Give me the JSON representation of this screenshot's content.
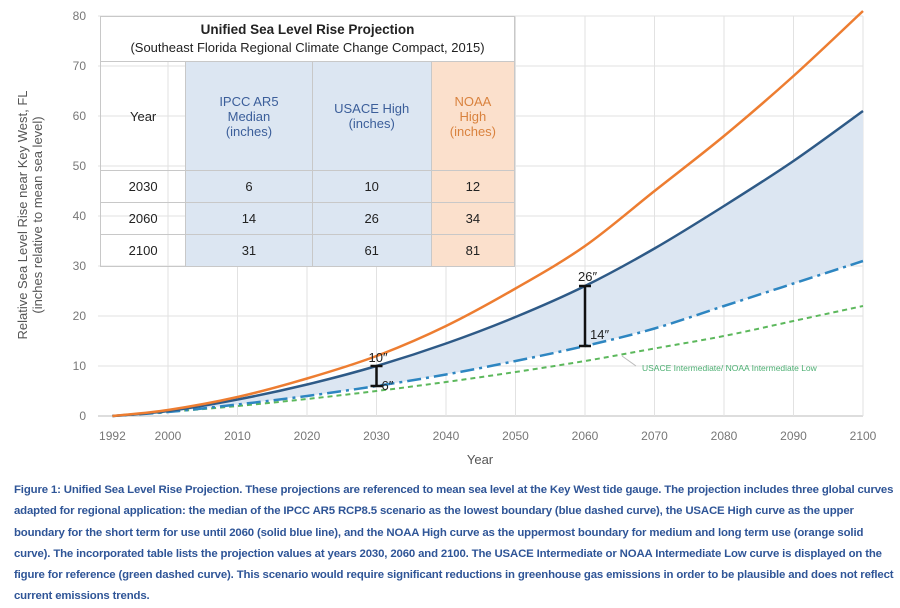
{
  "chart_data": {
    "type": "line",
    "xlabel": "Year",
    "ylabel": "Relative Sea Level Rise near Key West, FL",
    "ylabel2": "(inches relative to mean sea level)",
    "xlim": [
      1992,
      2100
    ],
    "ylim": [
      0,
      80
    ],
    "xticks": [
      1992,
      2000,
      2010,
      2020,
      2030,
      2040,
      2050,
      2060,
      2070,
      2080,
      2090,
      2100
    ],
    "yticks": [
      0,
      10,
      20,
      30,
      40,
      50,
      60,
      70,
      80
    ],
    "grid": true,
    "x": [
      1992,
      2000,
      2010,
      2020,
      2030,
      2040,
      2050,
      2060,
      2070,
      2080,
      2090,
      2100
    ],
    "series": [
      {
        "name": "NOAA High",
        "color": "#ed7d31",
        "style": "solid",
        "values": [
          0,
          1.2,
          3.8,
          7.5,
          12,
          18,
          25.5,
          34,
          45,
          56,
          68,
          81
        ]
      },
      {
        "name": "USACE High",
        "color": "#2e5a87",
        "style": "solid",
        "values": [
          0,
          1,
          3.3,
          6.3,
          10,
          14.5,
          19.8,
          26,
          33.5,
          42,
          51,
          61
        ]
      },
      {
        "name": "IPCC AR5 Median",
        "color": "#2e86c1",
        "style": "dash-dot",
        "values": [
          0,
          0.8,
          2.3,
          4,
          6,
          8.3,
          11,
          14,
          17.5,
          22,
          26.5,
          31
        ]
      },
      {
        "name": "USACE Intermediate/ NOAA Intermediate Low",
        "color": "#5cb85c",
        "style": "dashed",
        "values": [
          0,
          0.8,
          2,
          3.4,
          5,
          6.8,
          8.8,
          11,
          13.5,
          16,
          19,
          22
        ]
      }
    ],
    "fill_between": [
      "IPCC AR5 Median",
      "USACE High"
    ],
    "fill_color": "#dce6f2",
    "annotations": [
      {
        "text": "10″",
        "x": 2030,
        "y": 10
      },
      {
        "text": "6″",
        "x": 2030,
        "y": 6
      },
      {
        "text": "26″",
        "x": 2060,
        "y": 26
      },
      {
        "text": "14″",
        "x": 2060,
        "y": 14
      },
      {
        "text": "USACE Intermediate/ NOAA Intermediate Low",
        "x": 2065,
        "y": 10
      }
    ]
  },
  "table": {
    "title": "Unified Sea Level Rise Projection",
    "subtitle": "(Southeast Florida Regional Climate Change Compact, 2015)",
    "headers": [
      "Year",
      "IPCC AR5 Median (inches)",
      "USACE High (inches)",
      "NOAA High (inches)"
    ],
    "rows": [
      [
        "2030",
        "6",
        "10",
        "12"
      ],
      [
        "2060",
        "14",
        "26",
        "34"
      ],
      [
        "2100",
        "31",
        "61",
        "81"
      ]
    ]
  },
  "caption": "Figure 1: Unified Sea Level Rise Projection. These projections are referenced to mean sea level at the Key West tide gauge. The projection includes three global curves adapted for regional application: the median of the IPCC AR5 RCP8.5 scenario as the lowest boundary (blue dashed curve), the USACE High curve as the upper boundary for the short term for use until 2060 (solid blue line), and the NOAA High curve as the uppermost boundary for medium and long term use (orange solid curve). The incorporated table lists the projection values at years 2030, 2060 and 2100. The USACE Intermediate or NOAA Intermediate Low curve is displayed on the figure for reference (green dashed curve). This scenario would require significant reductions in greenhouse gas emissions in order to be plausible and does not reflect current emissions trends."
}
